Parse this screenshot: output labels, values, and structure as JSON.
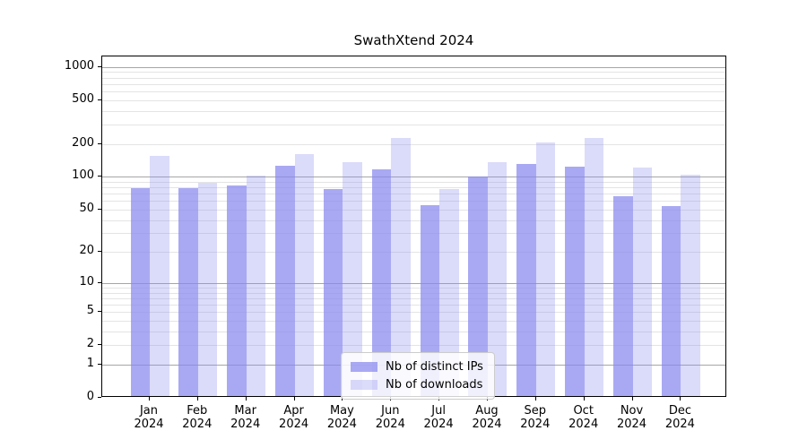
{
  "title": "SwathXtend 2024",
  "chart_data": {
    "type": "bar",
    "title": "SwathXtend 2024",
    "categories": [
      "Jan",
      "Feb",
      "Mar",
      "Apr",
      "May",
      "Jun",
      "Jul",
      "Aug",
      "Sep",
      "Oct",
      "Nov",
      "Dec"
    ],
    "year": "2024",
    "series": [
      {
        "name": "Nb of distinct IPs",
        "color": "rgba(136,136,238,0.72)",
        "values": [
          76,
          76,
          80,
          122,
          75,
          112,
          53,
          96,
          126,
          120,
          64,
          52
        ]
      },
      {
        "name": "Nb of downloads",
        "color": "rgba(136,136,238,0.30)",
        "values": [
          150,
          85,
          99,
          156,
          132,
          218,
          74,
          130,
          198,
          217,
          117,
          101
        ]
      }
    ],
    "y_axis": {
      "scale": "log10(value+1)",
      "tick_values": [
        0,
        1,
        2,
        5,
        10,
        20,
        50,
        100,
        200,
        500,
        1000
      ],
      "range_top": 1250
    },
    "grid": {
      "major": [
        1,
        10,
        100,
        1000
      ],
      "minor": [
        2,
        3,
        4,
        5,
        6,
        7,
        8,
        9,
        20,
        30,
        40,
        50,
        60,
        70,
        80,
        90,
        200,
        300,
        400,
        500,
        600,
        700,
        800,
        900
      ],
      "major_color": "#a6a6a6",
      "minor_color": "#e4e4e4"
    },
    "legend_position": "lower center",
    "xlabel": "",
    "ylabel": ""
  }
}
